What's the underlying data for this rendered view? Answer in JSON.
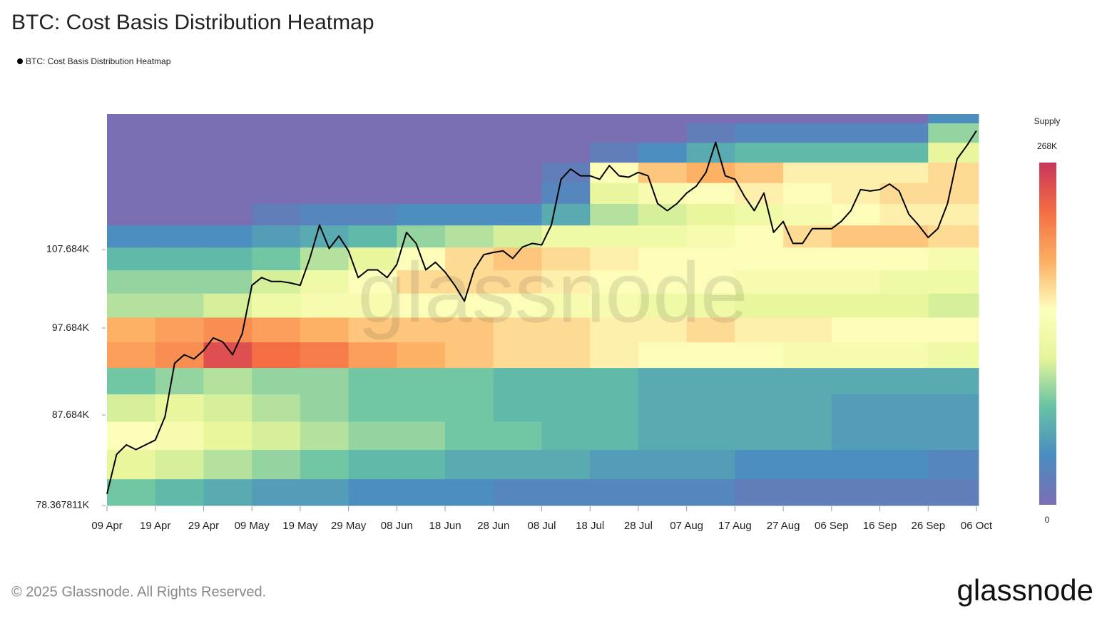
{
  "chart_data": {
    "type": "heatmap",
    "title": "BTC: Cost Basis Distribution Heatmap",
    "x": [
      "09 Apr",
      null,
      null,
      null,
      null,
      "19 Apr",
      null,
      null,
      null,
      null,
      "29 Apr",
      null,
      null,
      null,
      null,
      "09 May",
      null,
      null,
      null,
      null,
      "19 May",
      null,
      null,
      null,
      null,
      "29 May",
      null,
      null,
      null,
      null,
      "08 Jun",
      null,
      null,
      null,
      null,
      "18 Jun",
      null,
      null,
      null,
      null,
      "28 Jun",
      null,
      null,
      null,
      null,
      "08 Jul",
      null,
      null,
      null,
      null,
      "18 Jul",
      null,
      null,
      null,
      null,
      "28 Jul",
      null,
      null,
      null,
      null,
      "07 Aug",
      null,
      null,
      null,
      null,
      "17 Aug",
      null,
      null,
      null,
      null,
      "27 Aug",
      null,
      null,
      null,
      null,
      "06 Sep",
      null,
      null,
      null,
      null,
      "16 Sep",
      null,
      null,
      null,
      null,
      "26 Sep",
      null,
      null,
      null,
      null,
      "06 Oct"
    ],
    "series": [
      {
        "name": "BTC: Cost Basis Distribution Heatmap",
        "color": "#000000",
        "values": [
          79500,
          83500,
          84500,
          84000,
          84500,
          85000,
          87500,
          93500,
          94500,
          94000,
          95000,
          96500,
          96000,
          94500,
          97000,
          103000,
          104000,
          103500,
          103500,
          103300,
          103000,
          106500,
          111000,
          107800,
          109500,
          107500,
          104000,
          105000,
          105000,
          104000,
          105700,
          110000,
          108500,
          105000,
          106000,
          104700,
          103000,
          101000,
          105000,
          107000,
          107300,
          107500,
          106500,
          108000,
          108500,
          108300,
          111000,
          117500,
          119000,
          118000,
          118000,
          117500,
          119500,
          118000,
          117800,
          118500,
          118000,
          114000,
          113000,
          114000,
          115500,
          116500,
          118500,
          123000,
          118000,
          117500,
          115000,
          113000,
          115500,
          110000,
          111500,
          108500,
          108500,
          110500,
          110500,
          110500,
          111500,
          113000,
          116000,
          115800,
          116000,
          116800,
          115800,
          112500,
          111000,
          109300,
          110500,
          114000,
          120500,
          122500,
          124800
        ]
      }
    ],
    "ylim": [
      78367.811,
      127400
    ],
    "log_scale": true,
    "yticks": [
      {
        "value": 78367.811,
        "label": "78.367811K"
      },
      {
        "value": 87684,
        "label": "87.684K"
      },
      {
        "value": 97684,
        "label": "97.684K"
      },
      {
        "value": 107684,
        "label": "107.684K"
      }
    ],
    "heatmap": {
      "price_bins": [
        78367.811,
        81000,
        84000,
        87000,
        90000,
        93000,
        96000,
        99000,
        102000,
        105000,
        108000,
        111000,
        114000,
        117000,
        120000,
        123000,
        126000,
        127400
      ],
      "supply": [
        [
          80,
          120,
          150,
          110,
          80,
          200,
          190,
          100,
          90,
          70,
          40,
          0,
          0,
          0,
          0,
          0,
          0
        ],
        [
          70,
          110,
          140,
          120,
          90,
          210,
          200,
          100,
          90,
          70,
          40,
          0,
          0,
          0,
          0,
          0,
          0
        ],
        [
          60,
          100,
          120,
          110,
          100,
          250,
          210,
          110,
          90,
          70,
          40,
          0,
          0,
          0,
          0,
          0,
          0
        ],
        [
          50,
          90,
          110,
          100,
          90,
          230,
          200,
          130,
          110,
          80,
          50,
          20,
          0,
          0,
          0,
          0,
          0
        ],
        [
          50,
          80,
          100,
          90,
          90,
          220,
          190,
          140,
          130,
          100,
          60,
          30,
          0,
          0,
          0,
          0,
          0
        ],
        [
          40,
          70,
          90,
          80,
          80,
          200,
          180,
          140,
          150,
          120,
          70,
          30,
          0,
          0,
          0,
          0,
          0
        ],
        [
          40,
          70,
          90,
          80,
          80,
          190,
          180,
          150,
          170,
          150,
          90,
          40,
          0,
          0,
          0,
          0,
          0
        ],
        [
          40,
          60,
          80,
          80,
          80,
          180,
          180,
          150,
          170,
          170,
          100,
          40,
          0,
          0,
          0,
          0,
          0
        ],
        [
          30,
          60,
          80,
          70,
          70,
          170,
          170,
          150,
          170,
          180,
          110,
          40,
          0,
          0,
          0,
          0,
          0
        ],
        [
          30,
          60,
          70,
          70,
          70,
          170,
          170,
          140,
          160,
          170,
          130,
          60,
          30,
          20,
          0,
          0,
          0
        ],
        [
          30,
          50,
          70,
          70,
          70,
          160,
          160,
          140,
          150,
          160,
          130,
          100,
          120,
          150,
          20,
          0,
          0
        ],
        [
          30,
          50,
          60,
          60,
          60,
          150,
          160,
          130,
          150,
          150,
          130,
          110,
          140,
          180,
          40,
          0,
          0
        ],
        [
          30,
          50,
          60,
          60,
          60,
          150,
          170,
          130,
          150,
          150,
          140,
          120,
          150,
          190,
          60,
          20,
          0
        ],
        [
          20,
          40,
          60,
          60,
          60,
          150,
          160,
          120,
          140,
          150,
          150,
          130,
          160,
          180,
          70,
          30,
          0
        ],
        [
          20,
          40,
          60,
          60,
          60,
          140,
          160,
          120,
          140,
          150,
          170,
          140,
          150,
          160,
          70,
          30,
          0
        ],
        [
          20,
          40,
          50,
          50,
          60,
          140,
          150,
          120,
          140,
          150,
          180,
          150,
          160,
          160,
          70,
          30,
          0
        ],
        [
          20,
          40,
          50,
          50,
          60,
          140,
          150,
          120,
          130,
          150,
          180,
          160,
          170,
          160,
          70,
          30,
          0
        ],
        [
          20,
          30,
          50,
          50,
          60,
          130,
          150,
          110,
          130,
          140,
          170,
          160,
          170,
          170,
          120,
          90,
          40
        ]
      ]
    },
    "colorbar": {
      "title": "Supply",
      "min": 0,
      "max": {
        "value": 268,
        "label": "268K"
      },
      "colors": [
        "#7b6fb4",
        "#4a8cc0",
        "#66c2a5",
        "#e6f598",
        "#fefebc",
        "#fdae61",
        "#f46d43",
        "#c9365a"
      ]
    },
    "watermark": "glassnode",
    "footer": "© 2025 Glassnode. All Rights Reserved.",
    "logo": "glassnode"
  }
}
